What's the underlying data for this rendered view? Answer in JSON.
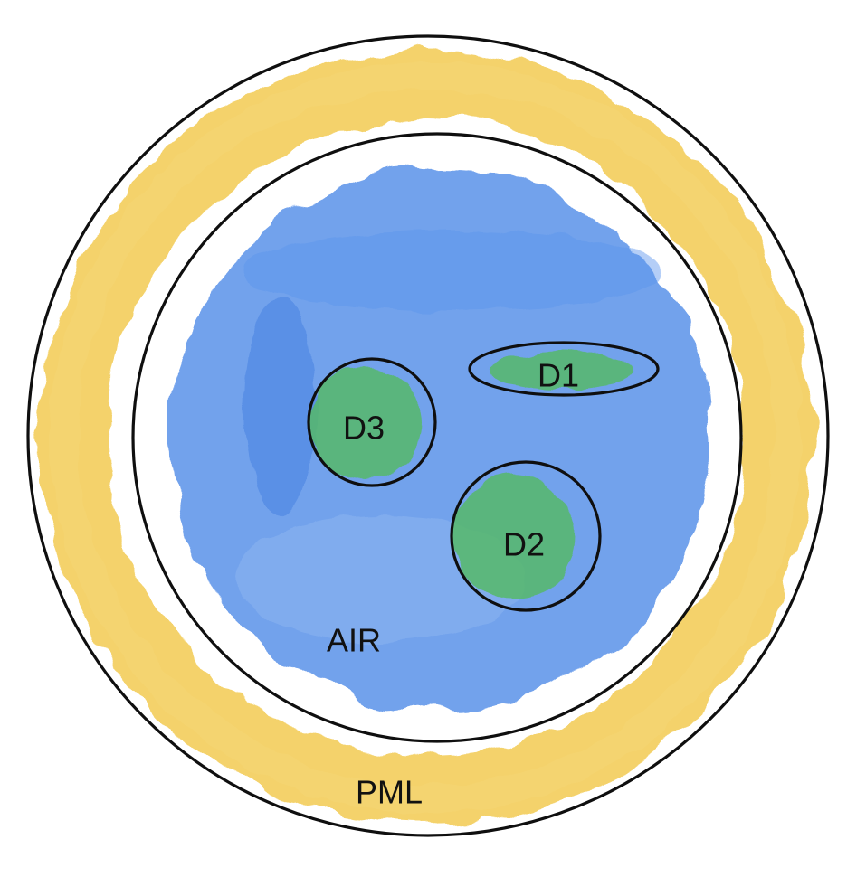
{
  "regions": {
    "pml": {
      "label": "PML",
      "color": "#f2c94c"
    },
    "air": {
      "label": "AIR",
      "color": "#3d7fe6"
    },
    "domains": [
      {
        "label": "D1",
        "color": "#57b96a"
      },
      {
        "label": "D2",
        "color": "#57b96a"
      },
      {
        "label": "D3",
        "color": "#57b96a"
      }
    ]
  }
}
